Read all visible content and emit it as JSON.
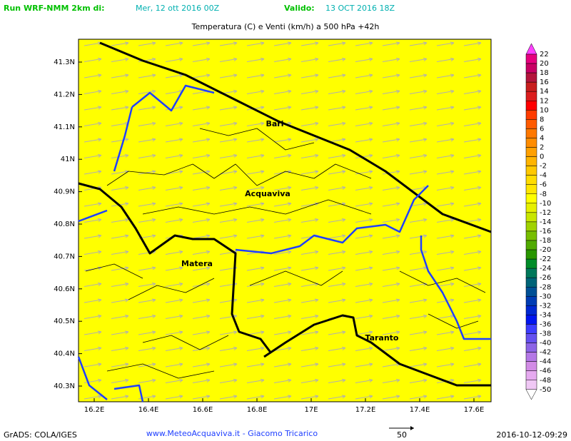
{
  "header": {
    "run_label": "Run WRF-NMM 2km di:",
    "run_date": "Mer, 12 ott 2016 00Z",
    "valid_label": "Valido:",
    "valid_date": "13 OCT 2016 18Z"
  },
  "title": "Temperatura (C) e Venti (km/h) a 500 hPa +42h",
  "map": {
    "lat_labels": [
      "41.3N",
      "41.2N",
      "41.1N",
      "41N",
      "40.9N",
      "40.8N",
      "40.7N",
      "40.6N",
      "40.5N",
      "40.4N",
      "40.3N"
    ],
    "lon_labels": [
      "16.2E",
      "16.4E",
      "16.6E",
      "16.8E",
      "17E",
      "17.2E",
      "17.4E",
      "17.6E"
    ],
    "places": [
      "Bari",
      "Acquaviva",
      "Matera",
      "Taranto"
    ]
  },
  "colorbar": {
    "labels": [
      "22",
      "20",
      "18",
      "16",
      "14",
      "12",
      "10",
      "8",
      "6",
      "4",
      "2",
      "0",
      "-2",
      "-4",
      "-6",
      "-8",
      "-10",
      "-12",
      "-14",
      "-16",
      "-18",
      "-20",
      "-22",
      "-24",
      "-26",
      "-28",
      "-30",
      "-32",
      "-34",
      "-36",
      "-38",
      "-40",
      "-42",
      "-44",
      "-46",
      "-48",
      "-50"
    ]
  },
  "footer": {
    "credit": "GrADS: COLA/IGES",
    "site": "www.MeteoAcquaviva.it - Giacomo Tricarico",
    "wind_reference": "50",
    "timestamp": "2016-10-12-09:29"
  }
}
